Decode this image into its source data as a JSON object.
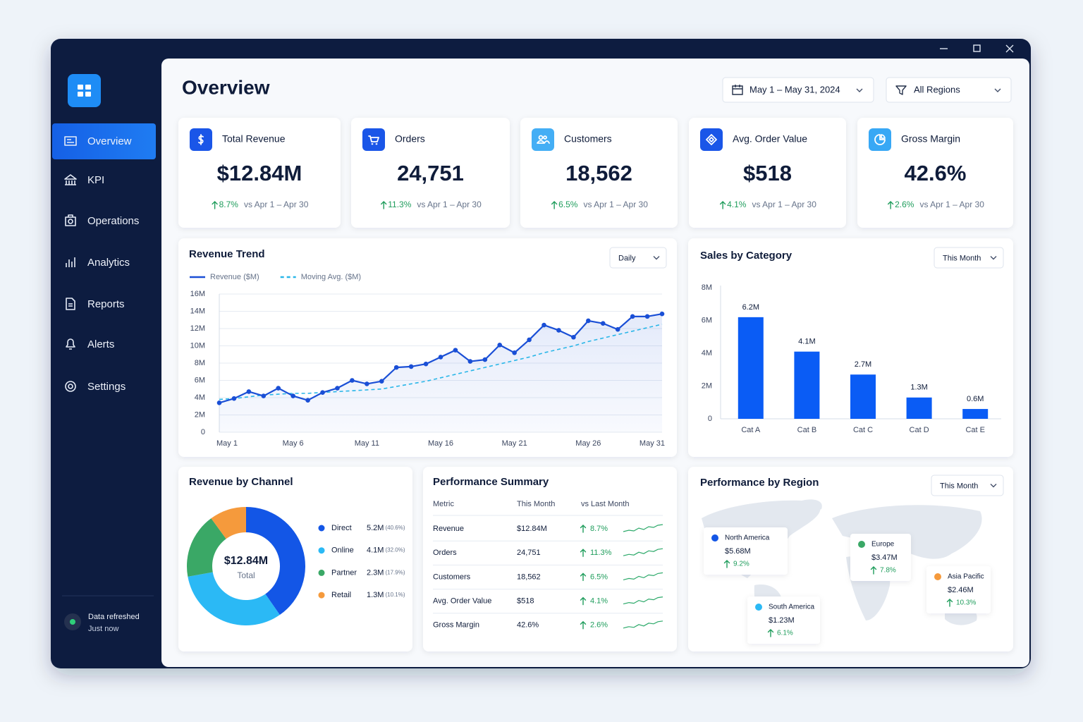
{
  "sidebar": {
    "nav": [
      "Overview",
      "KPI",
      "Operations",
      "Analytics",
      "Reports",
      "Alerts",
      "Settings"
    ],
    "status": {
      "title": "Data refreshed",
      "time": "Just now"
    }
  },
  "header": {
    "title": "Overview",
    "date_range": "May 1 – May 31, 2024",
    "region_filter": "All Regions"
  },
  "kpis": [
    {
      "label": "Total Revenue",
      "value": "$12.84M",
      "change": "8.7%",
      "comparison": "vs Apr 1 – Apr 30"
    },
    {
      "label": "Orders",
      "value": "24,751",
      "change": "11.3%",
      "comparison": "vs Apr 1 – Apr 30"
    },
    {
      "label": "Customers",
      "value": "18,562",
      "change": "6.5%",
      "comparison": "vs Apr 1 – Apr 30"
    },
    {
      "label": "Avg. Order Value",
      "value": "$518",
      "change": "4.1%",
      "comparison": "vs Apr 1 – Apr 30"
    },
    {
      "label": "Gross Margin",
      "value": "42.6%",
      "change": "2.6%",
      "comparison": "vs Apr 1 – Apr 30"
    }
  ],
  "revenue_trend": {
    "type": "line",
    "title": "Revenue Trend",
    "control": "Daily",
    "categories": [
      "May 1",
      null,
      null,
      null,
      null,
      "May 6",
      null,
      null,
      null,
      null,
      "May 11",
      null,
      null,
      null,
      null,
      "May 16",
      null,
      null,
      null,
      null,
      "May 21",
      null,
      null,
      null,
      null,
      "May 26",
      null,
      null,
      null,
      null,
      "May 31"
    ],
    "series": [
      {
        "name": "Revenue ($M)",
        "color": "#1a4fd6",
        "values": [
          3.4,
          3.9,
          4.7,
          4.2,
          5.1,
          4.2,
          3.7,
          4.6,
          5.1,
          6.0,
          5.6,
          5.9,
          7.5,
          7.6,
          7.9,
          8.7,
          9.5,
          8.2,
          8.4,
          10.1,
          9.2,
          10.7,
          12.4,
          11.8,
          11.0,
          12.9,
          12.6,
          11.9,
          13.4,
          13.4,
          13.7
        ]
      },
      {
        "name": "Moving Avg. ($M)",
        "color": "#29b6e8",
        "dashed": true,
        "values": [
          3.8,
          3.9,
          4.1,
          4.3,
          4.4,
          4.5,
          4.5,
          4.6,
          4.7,
          4.8,
          4.9,
          5.0,
          5.3,
          5.6,
          5.9,
          6.3,
          6.7,
          7.1,
          7.5,
          7.9,
          8.3,
          8.7,
          9.2,
          9.6,
          10.0,
          10.5,
          10.9,
          11.3,
          11.7,
          12.1,
          12.5
        ]
      }
    ],
    "ylim": [
      0,
      16
    ],
    "yticks": [
      0,
      {
        "value": 2,
        "label": "2M"
      },
      {
        "value": 4,
        "label": "4M"
      },
      {
        "value": 6,
        "label": "6M"
      },
      {
        "value": 8,
        "label": "8M"
      },
      {
        "value": 10,
        "label": "10M"
      },
      {
        "value": 12,
        "label": "12M"
      },
      {
        "value": 14,
        "label": "14M"
      },
      {
        "value": 16,
        "label": "16M"
      }
    ],
    "grid": true
  },
  "sales_by_category": {
    "type": "bar",
    "title": "Sales by Category",
    "control": "This Month",
    "categories": [
      "Cat A",
      "Cat B",
      "Cat C",
      "Cat D",
      "Cat E"
    ],
    "values": [
      6.2,
      4.1,
      2.7,
      1.3,
      0.6
    ],
    "value_labels": [
      "6.2M",
      "4.1M",
      "2.7M",
      "1.3M",
      "0.6M"
    ],
    "color": "#0a5cf5",
    "ylim": [
      0,
      8
    ],
    "yticks": [
      0,
      {
        "value": 2,
        "label": "2M"
      },
      {
        "value": 4,
        "label": "4M"
      },
      {
        "value": 6,
        "label": "6M"
      },
      {
        "value": 8,
        "label": "8M"
      }
    ]
  },
  "revenue_by_channel": {
    "type": "pie",
    "title": "Revenue by Channel",
    "center_value": "$12.84M",
    "center_label": "Total",
    "categories": [
      "Direct",
      "Online",
      "Partner",
      "Retail"
    ],
    "values": [
      40.6,
      32.0,
      17.9,
      10.1
    ],
    "value_labels": [
      "(40.6%)",
      "(32.0%)",
      "(17.9%)",
      "(10.1%)"
    ],
    "amounts": [
      "5.2M",
      "4.1M",
      "2.3M",
      "1.3M"
    ],
    "colors": [
      "#1356e6",
      "#2bb9f5",
      "#3aa866",
      "#f59a3c"
    ]
  },
  "performance_summary": {
    "title": "Performance Summary",
    "columns": [
      "Metric",
      "This Month",
      "vs Last Month"
    ],
    "rows": [
      [
        "Revenue",
        "$12.84M",
        "8.7%"
      ],
      [
        "Orders",
        "24,751",
        "11.3%"
      ],
      [
        "Customers",
        "18,562",
        "6.5%"
      ],
      [
        "Avg. Order Value",
        "$518",
        "4.1%"
      ],
      [
        "Gross Margin",
        "42.6%",
        "2.6%"
      ]
    ]
  },
  "performance_by_region": {
    "title": "Performance by Region",
    "control": "This Month",
    "regions": [
      {
        "name": "North America",
        "value": "$5.68M",
        "change": "9.2%",
        "color": "#1356e6"
      },
      {
        "name": "Europe",
        "value": "$3.47M",
        "change": "7.8%",
        "color": "#3aa866"
      },
      {
        "name": "Asia Pacific",
        "value": "$2.46M",
        "change": "10.3%",
        "color": "#f59a3c"
      },
      {
        "name": "South America",
        "value": "$1.23M",
        "change": "6.1%",
        "color": "#2bb9f5"
      }
    ]
  }
}
